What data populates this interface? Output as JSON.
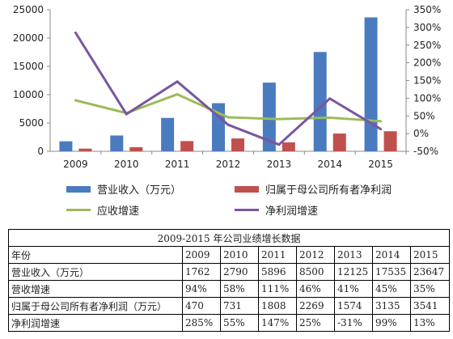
{
  "chart_data": {
    "type": "bar",
    "categories": [
      "2009",
      "2010",
      "2011",
      "2012",
      "2013",
      "2014",
      "2015"
    ],
    "series": [
      {
        "name": "营业收入（万元）",
        "kind": "bar",
        "axis": "left",
        "color": "#4a7bbf",
        "values": [
          1762,
          2790,
          5896,
          8500,
          12125,
          17535,
          23647
        ]
      },
      {
        "name": "归属于母公司所有者净利润",
        "kind": "bar",
        "axis": "left",
        "color": "#c0504d",
        "values": [
          470,
          731,
          1808,
          2269,
          1574,
          3135,
          3541
        ]
      },
      {
        "name": "应收增速",
        "kind": "line",
        "axis": "right",
        "color": "#9bbb59",
        "values": [
          94,
          58,
          111,
          46,
          41,
          45,
          35
        ]
      },
      {
        "name": "净利润增速",
        "kind": "line",
        "axis": "right",
        "color": "#7a56a0",
        "values": [
          285,
          55,
          147,
          25,
          -31,
          99,
          13
        ]
      }
    ],
    "left_axis": {
      "min": 0,
      "max": 25000,
      "ticks": [
        "0",
        "5000",
        "10000",
        "15000",
        "20000",
        "25000"
      ]
    },
    "right_axis": {
      "min": -50,
      "max": 350,
      "ticks": [
        "-50%",
        "0%",
        "50%",
        "100%",
        "150%",
        "200%",
        "250%",
        "300%",
        "350%"
      ]
    },
    "grid": false,
    "legend_position": "bottom"
  },
  "table": {
    "title": "2009-2015 年公司业绩增长数据",
    "header": [
      "年份",
      "2009",
      "2010",
      "2011",
      "2012",
      "2013",
      "2014",
      "2015"
    ],
    "rows": [
      [
        "营业收入（万元）",
        "1762",
        "2790",
        "5896",
        "8500",
        "12125",
        "17535",
        "23647"
      ],
      [
        "营收增速",
        "94%",
        "58%",
        "111%",
        "46%",
        "41%",
        "45%",
        "35%"
      ],
      [
        "归属于母公司所有者净利润（万元）",
        "470",
        "731",
        "1808",
        "2269",
        "1574",
        "3135",
        "3541"
      ],
      [
        "净利润增速",
        "285%",
        "55%",
        "147%",
        "25%",
        "-31%",
        "99%",
        "13%"
      ]
    ]
  }
}
